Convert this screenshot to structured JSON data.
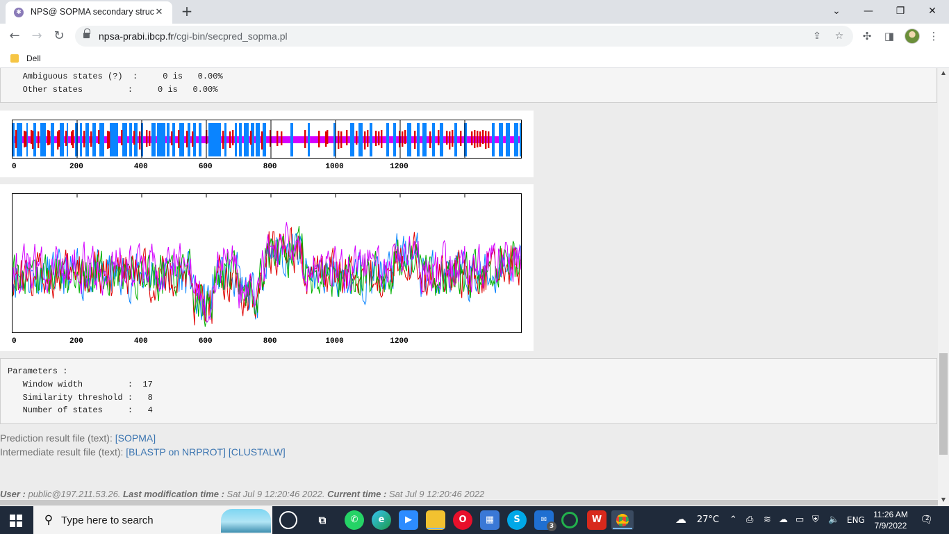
{
  "browser": {
    "tab_title": "NPS@ SOPMA secondary structure",
    "tab_close": "✕",
    "new_tab": "+",
    "url_host": "npsa-prabi.ibcp.fr",
    "url_path": "/cgi-bin/secpred_sopma.pl",
    "bookmark": "Dell",
    "window_min": "—",
    "window_max": "❐",
    "window_close": "✕"
  },
  "summary_box": {
    "lines": [
      "   Ambiguous states (?)  :     0 is   0.00%",
      "   Other states         :     0 is   0.00%"
    ]
  },
  "secondary_structure_plot": {
    "ticks": [
      "0",
      "200",
      "400",
      "600",
      "800",
      "1000",
      "1200"
    ],
    "colors": {
      "helix": "#0a84ff",
      "strand": "#e00000",
      "coil": "#d400ff"
    }
  },
  "chart_data": {
    "type": "line",
    "x_ticks": [
      "0",
      "200",
      "400",
      "600",
      "800",
      "1000",
      "1200"
    ],
    "xlim": [
      0,
      1580
    ],
    "series": [
      {
        "color": "#0a84ff"
      },
      {
        "color": "#e00000"
      },
      {
        "color": "#00b000"
      },
      {
        "color": "#d400ff"
      }
    ],
    "grid": false
  },
  "parameters_box": {
    "lines": [
      "Parameters :",
      "   Window width         :  17",
      "   Similarity threshold :   8",
      "   Number of states     :   4"
    ]
  },
  "result_files": {
    "prediction_label": "Prediction result file (text): ",
    "prediction_link": "[SOPMA]",
    "intermediate_label": "Intermediate result file (text): ",
    "blastp_link": "[BLASTP on NRPROT]",
    "clustalw_link": "[CLUSTALW]"
  },
  "footer": {
    "user_label": "User :",
    "user_value": " public@197.211.53.26. ",
    "lastmod_label": "Last modification time :",
    "lastmod_value": " Sat Jul 9 12:20:46 2022. ",
    "current_label": "Current time :",
    "current_value": " Sat Jul 9 12:20:46 2022"
  },
  "taskbar": {
    "search_placeholder": "Type here to search",
    "temperature": "27°C",
    "language": "ENG",
    "time": "11:26 AM",
    "date": "7/9/2022",
    "mail_badge": "3",
    "notifications": "2"
  }
}
